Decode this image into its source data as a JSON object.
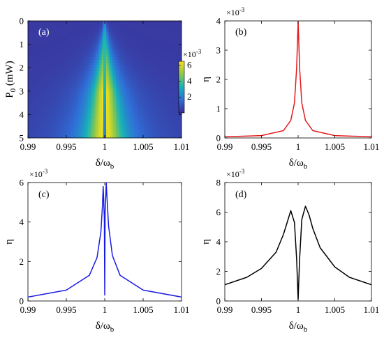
{
  "colors": {
    "panel_b": "#e31a1c",
    "panel_c": "#1a1ae6",
    "panel_d": "#000000",
    "heatmap_low": "#3b2c94",
    "heatmap_high": "#f7e01a"
  },
  "chart_data": [
    {
      "panel": "(a)",
      "type": "heatmap",
      "xlabel_main": "δ/ω",
      "xlabel_sub": "b",
      "ylabel_main": "P",
      "ylabel_sub": "0",
      "ylabel_unit": " (mW)",
      "xlim": [
        0.99,
        1.01
      ],
      "ylim": [
        0,
        5
      ],
      "y_reversed": true,
      "xticks": [
        "0.99",
        "0.995",
        "1",
        "1.005",
        "1.01"
      ],
      "yticks": [
        "0",
        "1",
        "2",
        "3",
        "4",
        "5"
      ],
      "colorbar": {
        "min": 0,
        "max": 0.0065,
        "ticks": [
          "2",
          "4",
          "6"
        ],
        "multiplier_base": "×10",
        "multiplier_exp": "-3"
      },
      "description_values": {
        "peak_eta": 0.0064,
        "dip_position": 1.0,
        "peak_positions_at_P5": [
          0.999,
          1.001
        ]
      }
    },
    {
      "panel": "(b)",
      "type": "line",
      "color": "#e31a1c",
      "xlabel_main": "δ/ω",
      "xlabel_sub": "b",
      "ylabel": "η",
      "xlim": [
        0.99,
        1.01
      ],
      "ylim": [
        0,
        0.004
      ],
      "xticks": [
        "0.99",
        "0.995",
        "1",
        "1.005",
        "1.01"
      ],
      "yticks": [
        "0",
        "1",
        "2",
        "3",
        "4"
      ],
      "multiplier_base": "×10",
      "multiplier_exp": "-3",
      "x": [
        0.99,
        0.995,
        0.998,
        0.999,
        0.9995,
        0.9998,
        1.0,
        1.0002,
        1.0005,
        1.001,
        1.002,
        1.005,
        1.01
      ],
      "y": [
        4e-05,
        8e-05,
        0.00025,
        0.0006,
        0.0012,
        0.0024,
        0.004,
        0.0024,
        0.0012,
        0.0006,
        0.00025,
        8e-05,
        4e-05
      ]
    },
    {
      "panel": "(c)",
      "type": "line",
      "color": "#1a1ae6",
      "xlabel_main": "δ/ω",
      "xlabel_sub": "b",
      "ylabel": "η",
      "xlim": [
        0.99,
        1.01
      ],
      "ylim": [
        0,
        0.006
      ],
      "xticks": [
        "0.99",
        "0.995",
        "1",
        "1.005",
        "1.01"
      ],
      "yticks": [
        "0",
        "2",
        "4",
        "6"
      ],
      "multiplier_base": "×10",
      "multiplier_exp": "-3",
      "x": [
        0.99,
        0.995,
        0.998,
        0.999,
        0.9995,
        0.9997,
        0.9998,
        0.99995,
        1.0,
        1.00005,
        1.0002,
        1.0003,
        1.0005,
        1.001,
        1.002,
        1.005,
        1.01
      ],
      "y": [
        0.0002,
        0.00055,
        0.0013,
        0.0022,
        0.0035,
        0.0048,
        0.0058,
        0.0042,
        0.0003,
        0.0045,
        0.006,
        0.0052,
        0.0038,
        0.0023,
        0.0013,
        0.00055,
        0.0002
      ]
    },
    {
      "panel": "(d)",
      "type": "line",
      "color": "#000000",
      "xlabel_main": "δ/ω",
      "xlabel_sub": "b",
      "ylabel": "η",
      "xlim": [
        0.99,
        1.01
      ],
      "ylim": [
        0,
        0.008
      ],
      "xticks": [
        "0.99",
        "0.995",
        "1",
        "1.005",
        "1.01"
      ],
      "yticks": [
        "0",
        "2",
        "4",
        "6",
        "8"
      ],
      "multiplier_base": "×10",
      "multiplier_exp": "-3",
      "x": [
        0.99,
        0.993,
        0.995,
        0.997,
        0.998,
        0.9985,
        0.999,
        0.9995,
        0.9998,
        1.0,
        1.0002,
        1.0005,
        1.001,
        1.0015,
        1.002,
        1.003,
        1.005,
        1.007,
        1.01
      ],
      "y": [
        0.0011,
        0.0016,
        0.0022,
        0.0033,
        0.0045,
        0.0053,
        0.0061,
        0.0053,
        0.0028,
        0.0001,
        0.0028,
        0.0055,
        0.0064,
        0.0058,
        0.0049,
        0.0036,
        0.0023,
        0.0016,
        0.0011
      ]
    }
  ]
}
